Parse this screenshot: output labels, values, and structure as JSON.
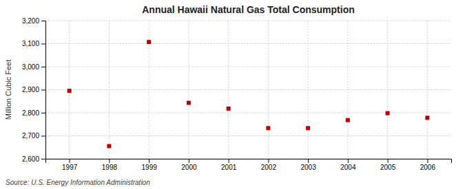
{
  "chart_data": {
    "type": "scatter",
    "title": "Annual Hawaii Natural Gas Total Consumption",
    "y_label": "Million Cubic Feet",
    "source": "Source: U.S. Energy Information Administration",
    "x": [
      1997,
      1998,
      1999,
      2000,
      2001,
      2002,
      2003,
      2004,
      2005,
      2006
    ],
    "values": [
      2895,
      2655,
      3107,
      2843,
      2818,
      2733,
      2733,
      2768,
      2798,
      2778
    ],
    "color": "#bb0000",
    "marker": "square",
    "xlim": [
      1996.4,
      2006.6
    ],
    "xticks": [
      1997,
      1998,
      1999,
      2000,
      2001,
      2002,
      2003,
      2004,
      2005,
      2006
    ],
    "ylim": [
      2600,
      3200
    ],
    "yticks": [
      {
        "value": 2600,
        "label": "2,600"
      },
      {
        "value": 2700,
        "label": "2,700"
      },
      {
        "value": 2800,
        "label": "2,800"
      },
      {
        "value": 2900,
        "label": "2,900"
      },
      {
        "value": 3000,
        "label": "3,000"
      },
      {
        "value": 3100,
        "label": "3,100"
      },
      {
        "value": 3200,
        "label": "3,200"
      }
    ],
    "grid": true
  }
}
